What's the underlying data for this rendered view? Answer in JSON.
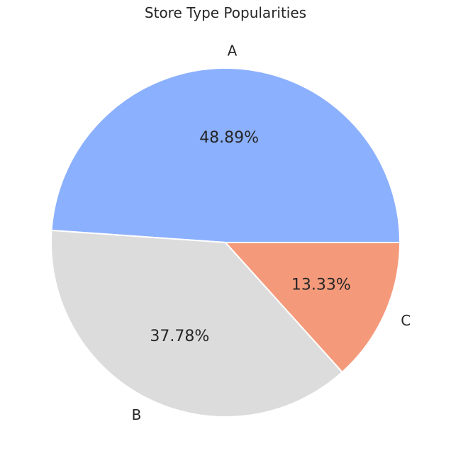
{
  "chart_data": {
    "type": "pie",
    "title": "Store Type Popularities",
    "categories": [
      "A",
      "B",
      "C"
    ],
    "values": [
      48.89,
      37.78,
      13.33
    ],
    "value_labels": [
      "48.89%",
      "37.78%",
      "13.33%"
    ],
    "colors": [
      "#8bb0fe",
      "#dcdcdc",
      "#f49a7b"
    ],
    "start_angle_deg": 0,
    "direction": "counterclockwise",
    "edge_color": "#ffffff"
  }
}
